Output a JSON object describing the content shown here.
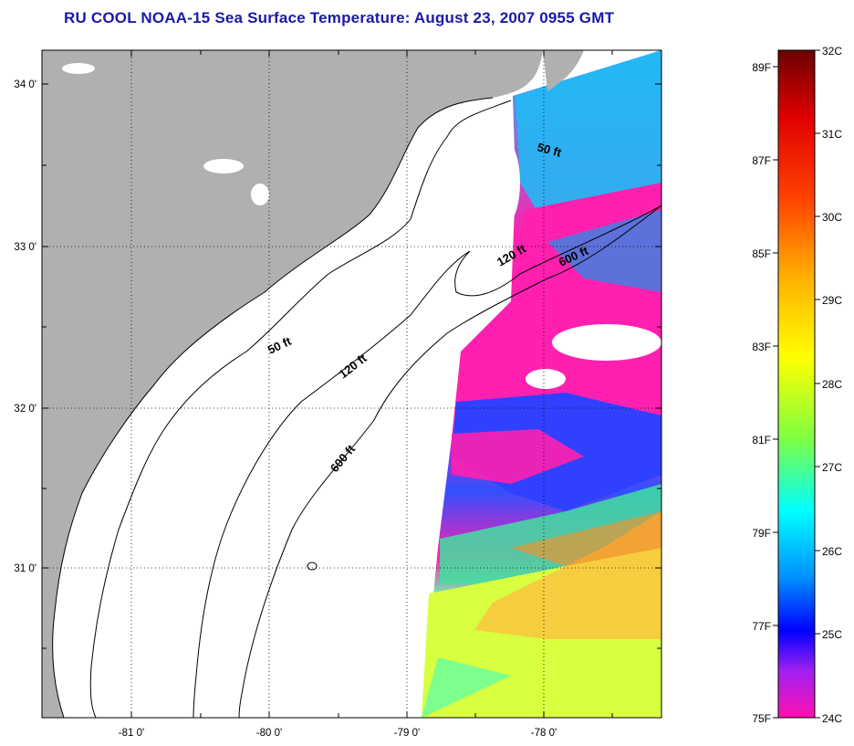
{
  "title": "RU COOL  NOAA-15  Sea Surface Temperature:  August 23, 2007 0955 GMT",
  "map": {
    "lat_labels": [
      "34 0'",
      "33 0'",
      "32 0'",
      "31 0'"
    ],
    "lon_labels": [
      "-81 0'",
      "-80 0'",
      "-79 0'",
      "-78 0'"
    ],
    "depth_labels": [
      "50 ft",
      "120 ft",
      "600 ft",
      "50 ft",
      "120 ft",
      "600 ft"
    ],
    "colors": {
      "land": "#b0b0b0",
      "ocean_nodata": "#ffffff",
      "coast": "#000000"
    }
  },
  "colorbar": {
    "fahrenheit_labels": [
      "89F",
      "87F",
      "85F",
      "83F",
      "81F",
      "79F",
      "77F",
      "75F"
    ],
    "celsius_labels": [
      "32C",
      "31C",
      "30C",
      "29C",
      "28C",
      "27C",
      "26C",
      "25C",
      "24C"
    ],
    "stops": [
      "#800000",
      "#ff0000",
      "#ff8000",
      "#ffff00",
      "#80ff00",
      "#00ffff",
      "#0080ff",
      "#0000ff",
      "#ff00ff"
    ]
  }
}
